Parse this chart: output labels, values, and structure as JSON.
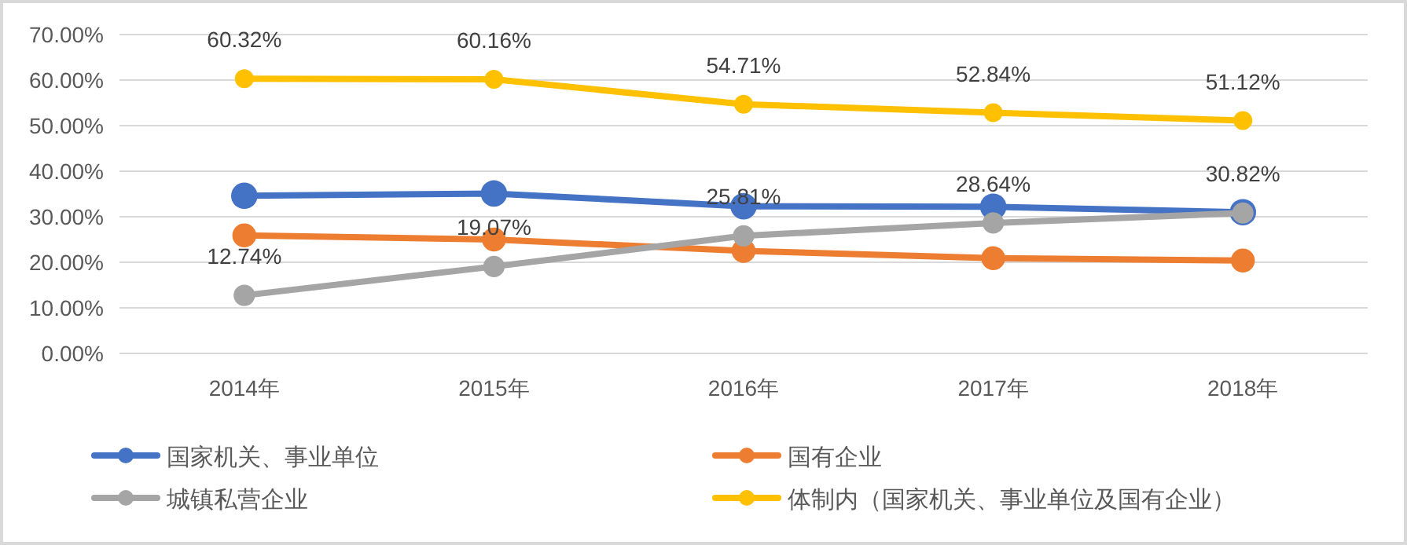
{
  "chart_data": {
    "type": "line",
    "categories": [
      "2014年",
      "2015年",
      "2016年",
      "2017年",
      "2018年"
    ],
    "ylim": [
      0,
      70
    ],
    "yticks": [
      {
        "value": 0,
        "label": "0.00%"
      },
      {
        "value": 10,
        "label": "10.00%"
      },
      {
        "value": 20,
        "label": "20.00%"
      },
      {
        "value": 30,
        "label": "30.00%"
      },
      {
        "value": 40,
        "label": "40.00%"
      },
      {
        "value": 50,
        "label": "50.00%"
      },
      {
        "value": 60,
        "label": "60.00%"
      },
      {
        "value": 70,
        "label": "70.00%"
      }
    ],
    "grid": "y",
    "legend": "bottom",
    "marker": "circle",
    "line_style": "solid",
    "series": [
      {
        "name": "国家机关、事业单位",
        "color": "#4472c4",
        "values": [
          34.6,
          35.1,
          32.3,
          32.2,
          31.0
        ]
      },
      {
        "name": "国有企业",
        "color": "#ed7d31",
        "values": [
          25.9,
          25.0,
          22.5,
          20.9,
          20.4
        ]
      },
      {
        "name": "城镇私营企业",
        "color": "#a5a5a5",
        "values": [
          12.74,
          19.07,
          25.81,
          28.64,
          30.82
        ],
        "value_labels": [
          "12.74%",
          "19.07%",
          "25.81%",
          "28.64%",
          "30.82%"
        ]
      },
      {
        "name": "体制内（国家机关、事业单位及国有企业）",
        "color": "#ffc000",
        "values": [
          60.32,
          60.16,
          54.71,
          52.84,
          51.12
        ],
        "value_labels": [
          "60.32%",
          "60.16%",
          "54.71%",
          "52.84%",
          "51.12%"
        ]
      }
    ]
  }
}
